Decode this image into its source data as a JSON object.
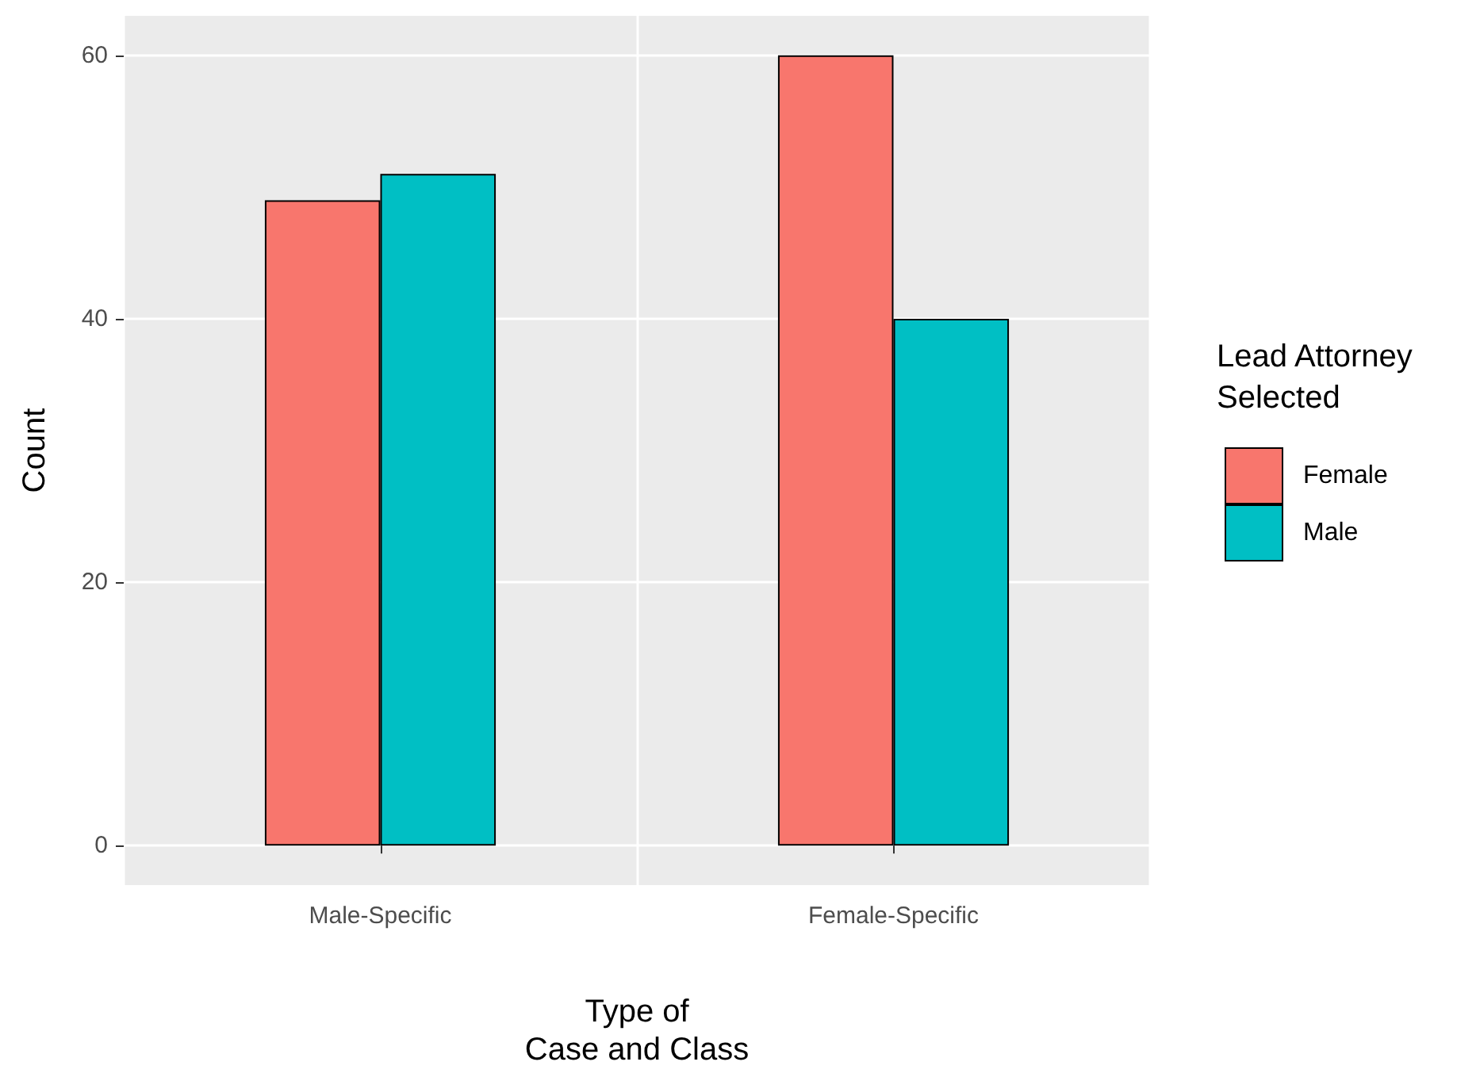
{
  "chart_data": {
    "type": "bar",
    "xlabel": "Type of\nCase and Class",
    "ylabel": "Count",
    "legend_title": "Lead Attorney\nSelected",
    "categories": [
      "Male-Specific",
      "Female-Specific"
    ],
    "series": [
      {
        "name": "Female",
        "color": "#f8766d",
        "values": [
          49,
          60
        ]
      },
      {
        "name": "Male",
        "color": "#00bfc4",
        "values": [
          51,
          40
        ]
      }
    ],
    "ylim": [
      -3,
      63
    ],
    "yticks": [
      0,
      20,
      40,
      60
    ],
    "grid": true,
    "legend": "right"
  }
}
